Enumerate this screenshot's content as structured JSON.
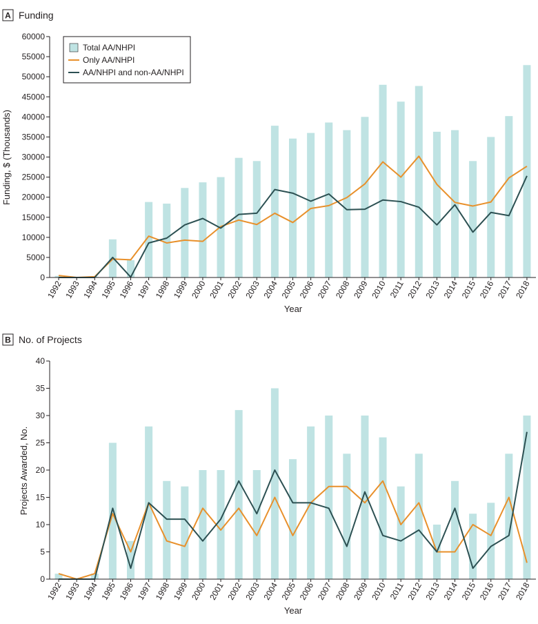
{
  "colors": {
    "bar": "#bfe3e3",
    "only_line": "#e8902b",
    "both_line": "#2c5052",
    "axis": "#231f20"
  },
  "chart_data": [
    {
      "panel_letter": "A",
      "title": "Funding",
      "type": "bar+line",
      "xlabel": "Year",
      "ylabel": "Funding, $ (Thousands)",
      "ylim": [
        0,
        60000
      ],
      "yticks": [
        0,
        5000,
        10000,
        15000,
        20000,
        25000,
        30000,
        35000,
        40000,
        45000,
        50000,
        55000,
        60000
      ],
      "categories": [
        "1992",
        "1993",
        "1994",
        "1995",
        "1996",
        "1997",
        "1998",
        "1999",
        "2000",
        "2001",
        "2002",
        "2003",
        "2004",
        "2005",
        "2006",
        "2007",
        "2008",
        "2009",
        "2010",
        "2011",
        "2012",
        "2013",
        "2014",
        "2015",
        "2016",
        "2017",
        "2018"
      ],
      "legend": {
        "placement": "top-left",
        "entries": [
          "Total AA/NHPI",
          "Only AA/NHPI",
          "AA/NHPI and non-AA/NHPI"
        ]
      },
      "series": [
        {
          "name": "Total AA/NHPI",
          "kind": "bar",
          "values": [
            400,
            0,
            200,
            9500,
            4300,
            18800,
            18400,
            22300,
            23700,
            25000,
            29800,
            29000,
            37800,
            34600,
            36000,
            38600,
            36700,
            40000,
            48000,
            43800,
            47700,
            36300,
            36700,
            29000,
            35000,
            40200,
            52900
          ]
        },
        {
          "name": "Only AA/NHPI",
          "kind": "line",
          "values": [
            500,
            0,
            200,
            4600,
            4400,
            10300,
            8600,
            9300,
            9000,
            12700,
            14300,
            13200,
            16000,
            13700,
            17200,
            17900,
            19900,
            23300,
            28800,
            25000,
            30200,
            23200,
            18700,
            17800,
            18800,
            24800,
            27700
          ]
        },
        {
          "name": "AA/NHPI and non-AA/NHPI",
          "kind": "line",
          "values": [
            0,
            0,
            0,
            5000,
            100,
            8600,
            9800,
            13100,
            14700,
            12300,
            15700,
            16000,
            21900,
            21000,
            19000,
            20800,
            16900,
            17000,
            19300,
            18900,
            17500,
            13100,
            18100,
            11300,
            16200,
            15400,
            25300
          ]
        }
      ]
    },
    {
      "panel_letter": "B",
      "title": "No. of Projects",
      "type": "bar+line",
      "xlabel": "Year",
      "ylabel": "Projects Awarded, No.",
      "ylim": [
        0,
        40
      ],
      "yticks": [
        0,
        5,
        10,
        15,
        20,
        25,
        30,
        35,
        40
      ],
      "categories": [
        "1992",
        "1993",
        "1994",
        "1995",
        "1996",
        "1997",
        "1998",
        "1999",
        "2000",
        "2001",
        "2002",
        "2003",
        "2004",
        "2005",
        "2006",
        "2007",
        "2008",
        "2009",
        "2010",
        "2011",
        "2012",
        "2013",
        "2014",
        "2015",
        "2016",
        "2017",
        "2018"
      ],
      "series": [
        {
          "name": "Total AA/NHPI",
          "kind": "bar",
          "values": [
            1,
            0,
            1,
            25,
            7,
            28,
            18,
            17,
            20,
            20,
            31,
            20,
            35,
            22,
            28,
            30,
            23,
            30,
            26,
            17,
            23,
            10,
            18,
            12,
            14,
            23,
            30
          ]
        },
        {
          "name": "Only AA/NHPI",
          "kind": "line",
          "values": [
            1,
            0,
            1,
            12,
            5,
            14,
            7,
            6,
            13,
            9,
            13,
            8,
            15,
            8,
            14,
            17,
            17,
            14,
            18,
            10,
            14,
            5,
            5,
            10,
            8,
            15,
            3
          ]
        },
        {
          "name": "AA/NHPI and non-AA/NHPI",
          "kind": "line",
          "values": [
            0,
            0,
            0,
            13,
            2,
            14,
            11,
            11,
            7,
            11,
            18,
            12,
            20,
            14,
            14,
            13,
            6,
            16,
            8,
            7,
            9,
            5,
            13,
            2,
            6,
            8,
            27
          ]
        }
      ]
    }
  ]
}
